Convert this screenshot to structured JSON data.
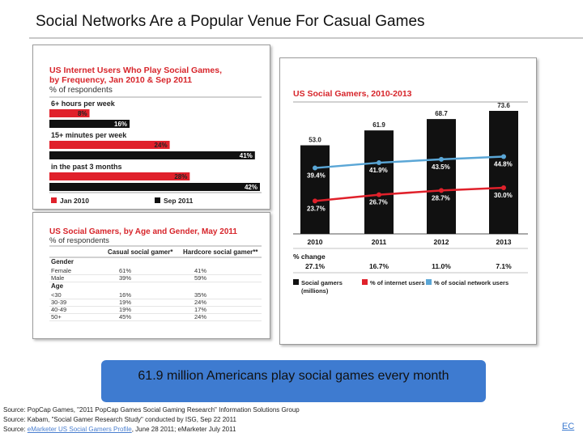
{
  "slide": {
    "title": "Social Networks Are a Popular Venue For Casual Games",
    "callout": "61.9 million Americans play social games every month",
    "sources": [
      {
        "prefix": "Source: ",
        "text": "PopCap Games, \"2011 PopCap Games Social Gaming Research\" Information Solutions Group"
      },
      {
        "prefix": "Source: ",
        "text": "Kabam, \"Social Gamer Research Study\" conducted by ISG, Sep 22 2011"
      },
      {
        "prefix": "Source: ",
        "link": "eMarketer US Social Gamers Profile",
        "text": ", June 28 2011; eMarketer July 2011"
      }
    ],
    "footer_mark": "EC"
  },
  "chart_data": [
    {
      "type": "bar",
      "title": "US Internet Users Who Play Social Games, by Frequency, Jan 2010 & Sep 2011",
      "subtitle": "% of respondents",
      "categories": [
        "6+ hours per week",
        "15+ minutes per week",
        "in the past 3 months"
      ],
      "series": [
        {
          "name": "Jan 2010",
          "values": [
            8,
            24,
            28
          ],
          "color": "#e0212b"
        },
        {
          "name": "Sep 2011",
          "values": [
            16,
            41,
            42
          ],
          "color": "#111111"
        }
      ],
      "value_suffix": "%",
      "xlim": [
        0,
        42
      ],
      "orientation": "horizontal",
      "legend": "bottom"
    },
    {
      "type": "table",
      "title": "US Social Gamers, by Age and Gender, May 2011",
      "subtitle": "% of respondents",
      "columns": [
        "",
        "Casual social gamer*",
        "Hardcore social gamer**"
      ],
      "groups": [
        {
          "name": "Gender",
          "rows": [
            [
              "Female",
              "61%",
              "41%"
            ],
            [
              "Male",
              "39%",
              "59%"
            ]
          ]
        },
        {
          "name": "Age",
          "rows": [
            [
              "<30",
              "16%",
              "35%"
            ],
            [
              "30-39",
              "19%",
              "24%"
            ],
            [
              "40-49",
              "19%",
              "17%"
            ],
            [
              "50+",
              "45%",
              "24%"
            ]
          ]
        }
      ]
    },
    {
      "type": "bar",
      "title": "US Social Gamers, 2010-2013",
      "categories": [
        "2010",
        "2011",
        "2012",
        "2013"
      ],
      "series": [
        {
          "name": "Social gamers (millions)",
          "type": "bar",
          "values": [
            53.0,
            61.9,
            68.7,
            73.6
          ],
          "labels": [
            "53.0",
            "61.9",
            "68.7",
            "73.6"
          ],
          "color": "#111111"
        },
        {
          "name": "% of internet users",
          "type": "line",
          "values": [
            23.7,
            26.7,
            28.7,
            30.0
          ],
          "labels": [
            "23.7%",
            "26.7%",
            "28.7%",
            "30.0%"
          ],
          "color": "#e0212b"
        },
        {
          "name": "% of social network users",
          "type": "line",
          "values": [
            39.4,
            41.9,
            43.5,
            44.8
          ],
          "labels": [
            "39.4%",
            "41.9%",
            "43.5%",
            "44.8%"
          ],
          "color": "#5aa6d6"
        }
      ],
      "pct_change_label": "% change",
      "pct_change": [
        "27.1%",
        "16.7%",
        "11.0%",
        "7.1%"
      ],
      "ylim_bars": [
        0,
        73.6
      ],
      "legend": "bottom"
    }
  ]
}
